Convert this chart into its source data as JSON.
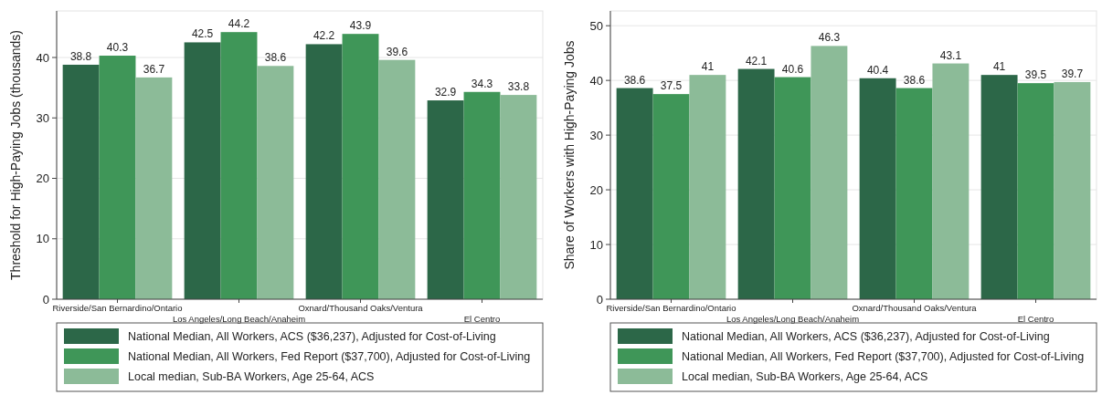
{
  "chart_data": [
    {
      "type": "bar",
      "ylabel": "Threshold for High-Paying Jobs (thousands)",
      "categories": [
        "Riverside/San Bernardino/Ontario",
        "Los Angeles/Long Beach/Anaheim",
        "Oxnard/Thousand Oaks/Ventura",
        "El Centro"
      ],
      "series": [
        {
          "name": "National Median, All Workers, ACS ($36,237), Adjusted for Cost-of-Living",
          "color": "#2c6748",
          "values": [
            38.8,
            42.5,
            42.2,
            32.9
          ]
        },
        {
          "name": "National Median, All Workers, Fed Report ($37,700), Adjusted for Cost-of-Living",
          "color": "#3f9658",
          "values": [
            40.3,
            44.2,
            43.9,
            34.3
          ]
        },
        {
          "name": "Local median, Sub-BA Workers, Age 25-64, ACS",
          "color": "#8cbb98",
          "values": [
            36.7,
            38.6,
            39.6,
            33.8
          ]
        }
      ],
      "ylim": [
        0,
        47.7
      ],
      "yticks": [
        0,
        10,
        20,
        30,
        40
      ],
      "grid": "y",
      "legend": "bottom",
      "data_labels": true
    },
    {
      "type": "bar",
      "ylabel": "Share of Workers with High-Paying Jobs",
      "categories": [
        "Riverside/San Bernardino/Ontario",
        "Los Angeles/Long Beach/Anaheim",
        "Oxnard/Thousand Oaks/Ventura",
        "El Centro"
      ],
      "series": [
        {
          "name": "National Median, All Workers, ACS ($36,237), Adjusted for Cost-of-Living",
          "color": "#2c6748",
          "values": [
            38.6,
            42.1,
            40.4,
            41
          ]
        },
        {
          "name": "National Median, All Workers, Fed Report ($37,700), Adjusted for Cost-of-Living",
          "color": "#3f9658",
          "values": [
            37.5,
            40.6,
            38.6,
            39.5
          ]
        },
        {
          "name": "Local median, Sub-BA Workers, Age 25-64, ACS",
          "color": "#8cbb98",
          "values": [
            41,
            46.3,
            43.1,
            39.7
          ]
        }
      ],
      "ylim": [
        0,
        52.7
      ],
      "yticks": [
        0,
        10,
        20,
        30,
        40,
        50
      ],
      "grid": "y",
      "legend": "bottom",
      "data_labels": true
    }
  ]
}
